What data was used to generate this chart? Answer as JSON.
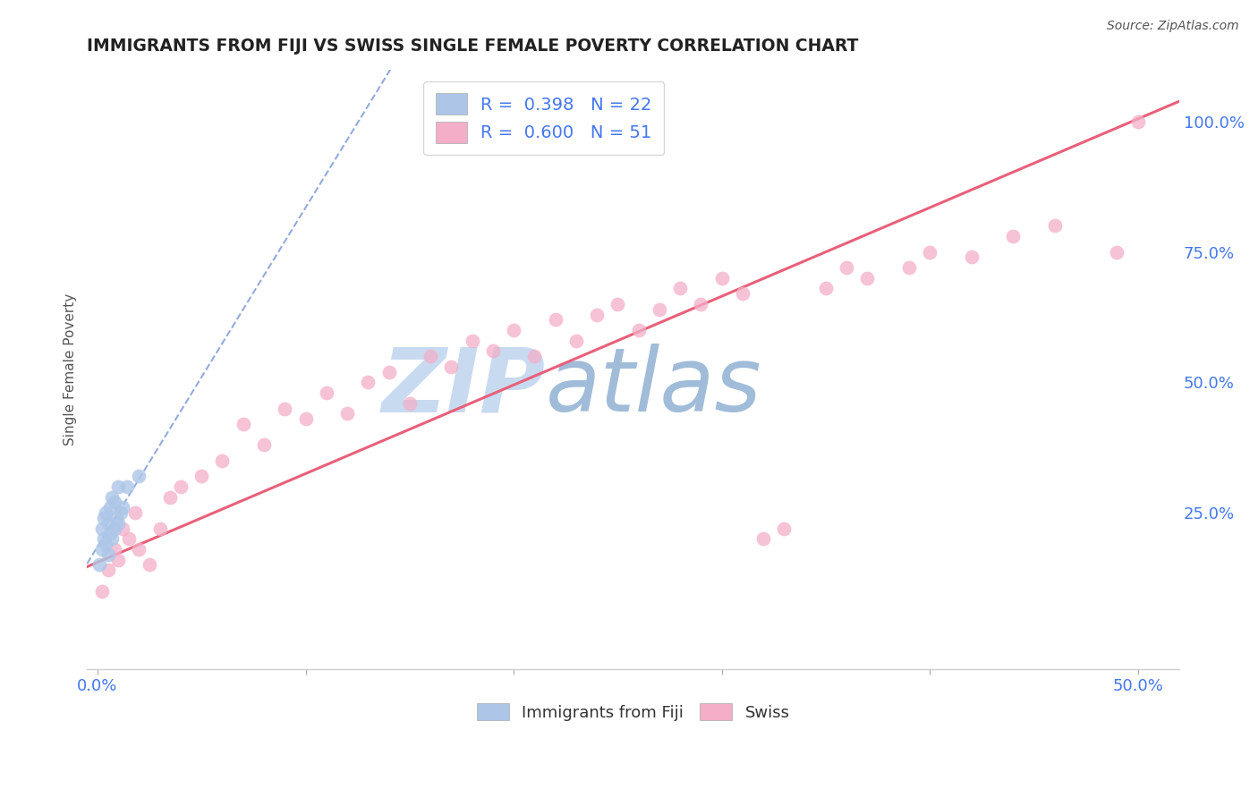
{
  "title": "IMMIGRANTS FROM FIJI VS SWISS SINGLE FEMALE POVERTY CORRELATION CHART",
  "source": "Source: ZipAtlas.com",
  "ylabel": "Single Female Poverty",
  "xlim": [
    -0.005,
    0.52
  ],
  "ylim": [
    -0.05,
    1.1
  ],
  "fiji_x": [
    0.001,
    0.002,
    0.002,
    0.003,
    0.003,
    0.004,
    0.004,
    0.005,
    0.005,
    0.006,
    0.006,
    0.007,
    0.007,
    0.008,
    0.008,
    0.009,
    0.01,
    0.01,
    0.011,
    0.012,
    0.014,
    0.02
  ],
  "fiji_y": [
    0.15,
    0.18,
    0.22,
    0.2,
    0.24,
    0.19,
    0.25,
    0.17,
    0.23,
    0.21,
    0.26,
    0.2,
    0.28,
    0.22,
    0.27,
    0.24,
    0.23,
    0.3,
    0.25,
    0.26,
    0.3,
    0.32
  ],
  "swiss_x": [
    0.002,
    0.005,
    0.008,
    0.01,
    0.012,
    0.015,
    0.018,
    0.02,
    0.025,
    0.03,
    0.035,
    0.04,
    0.05,
    0.06,
    0.07,
    0.08,
    0.09,
    0.1,
    0.11,
    0.12,
    0.13,
    0.14,
    0.15,
    0.16,
    0.17,
    0.18,
    0.19,
    0.2,
    0.21,
    0.22,
    0.23,
    0.24,
    0.25,
    0.26,
    0.27,
    0.28,
    0.29,
    0.3,
    0.31,
    0.32,
    0.33,
    0.35,
    0.36,
    0.37,
    0.39,
    0.4,
    0.42,
    0.44,
    0.46,
    0.49,
    0.5
  ],
  "swiss_y": [
    0.1,
    0.14,
    0.18,
    0.16,
    0.22,
    0.2,
    0.25,
    0.18,
    0.15,
    0.22,
    0.28,
    0.3,
    0.32,
    0.35,
    0.42,
    0.38,
    0.45,
    0.43,
    0.48,
    0.44,
    0.5,
    0.52,
    0.46,
    0.55,
    0.53,
    0.58,
    0.56,
    0.6,
    0.55,
    0.62,
    0.58,
    0.63,
    0.65,
    0.6,
    0.64,
    0.68,
    0.65,
    0.7,
    0.67,
    0.2,
    0.22,
    0.68,
    0.72,
    0.7,
    0.72,
    0.75,
    0.74,
    0.78,
    0.8,
    0.75,
    1.0
  ],
  "fiji_color": "#adc6e8",
  "swiss_color": "#f4aec8",
  "fiji_trend_color": "#6688cc",
  "swiss_trend_color": "#e8607a",
  "fiji_trend_slope": 6.5,
  "fiji_trend_intercept": 0.185,
  "swiss_trend_slope": 1.7,
  "swiss_trend_intercept": 0.155,
  "legend_r_fiji": "R =  0.398",
  "legend_n_fiji": "N = 22",
  "legend_r_swiss": "R =  0.600",
  "legend_n_swiss": "N = 51",
  "watermark_zip": "ZIP",
  "watermark_atlas": "atlas",
  "watermark_color_zip": "#c8daf0",
  "watermark_color_atlas": "#a0bcd8",
  "bg_color": "#ffffff",
  "grid_color": "#cccccc",
  "title_color": "#222222",
  "tick_color": "#4477ee"
}
